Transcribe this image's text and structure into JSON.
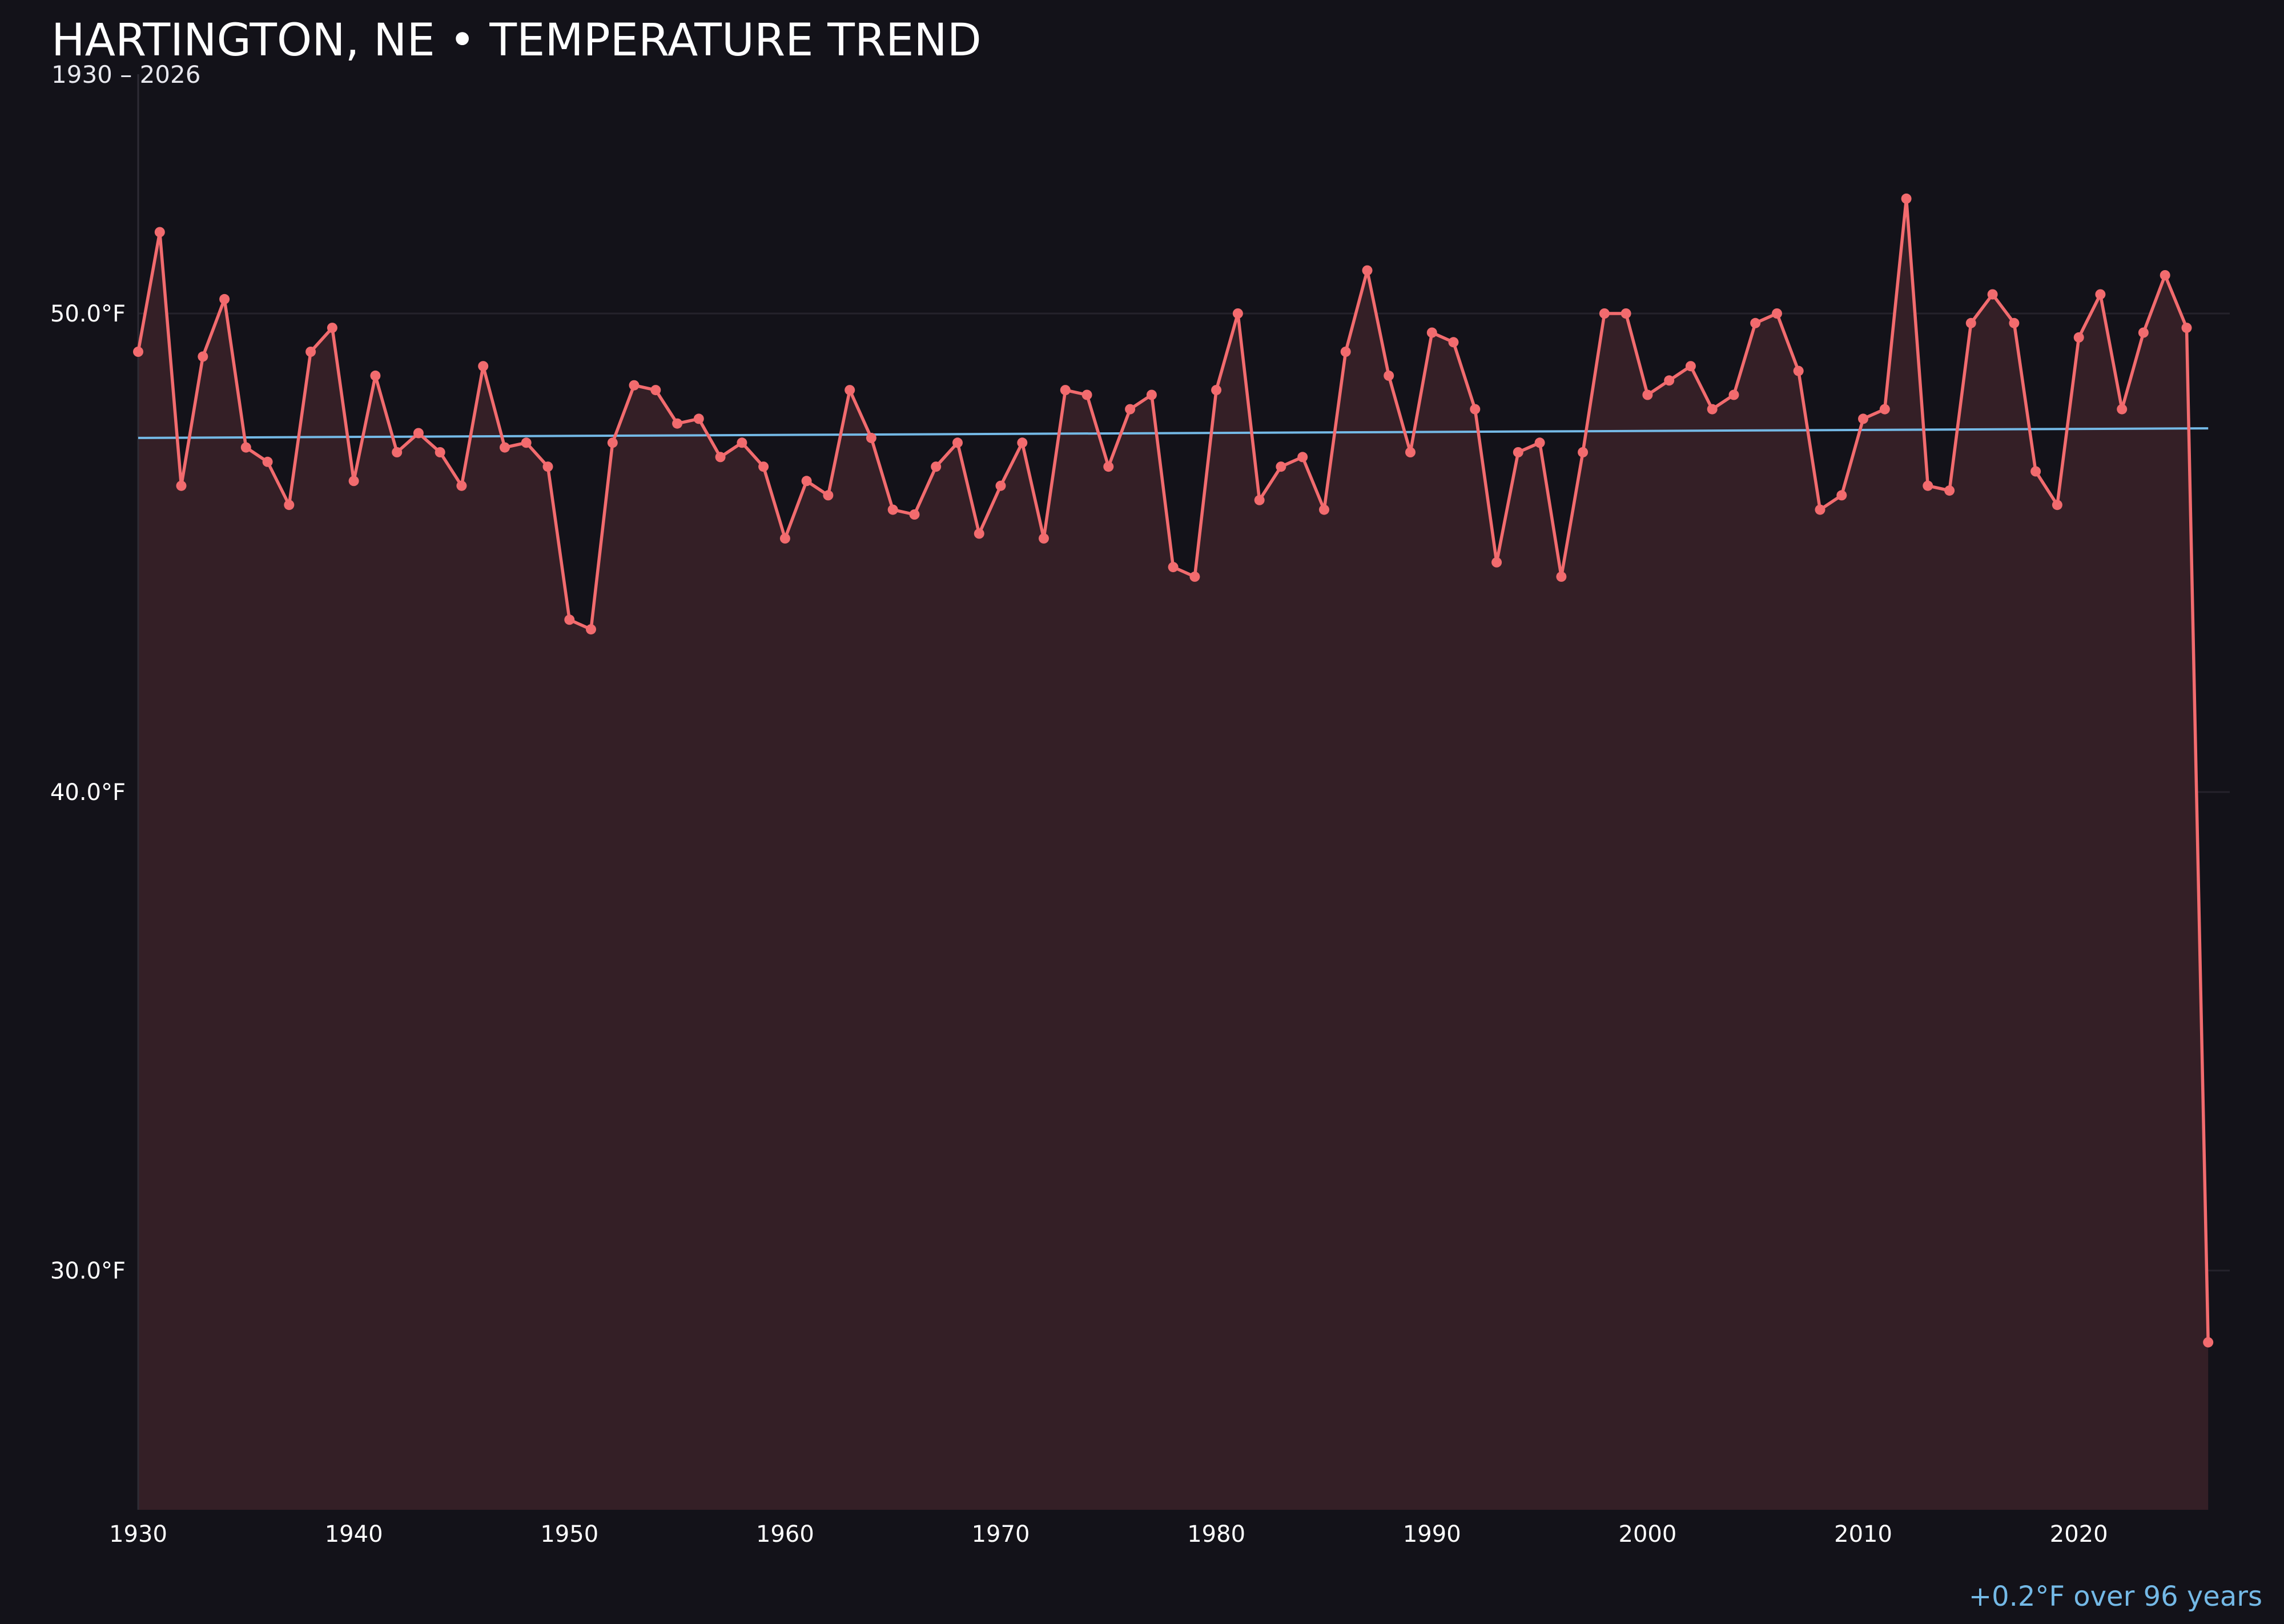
{
  "colors": {
    "background": "#131219",
    "series": "#f26b6e",
    "trend": "#74b9e6",
    "area_fill": "#341f26",
    "grid": "#25232c",
    "axis": "#2e2c35"
  },
  "chart_data": {
    "type": "line",
    "title": "HARTINGTON, NE • TEMPERATURE TREND",
    "subtitle": "1930 – 2026",
    "xlabel": "",
    "ylabel": "",
    "xlim": [
      1930,
      2027
    ],
    "ylim": [
      25,
      55
    ],
    "x_ticks": [
      1930,
      1940,
      1950,
      1960,
      1970,
      1980,
      1990,
      2000,
      2010,
      2020
    ],
    "y_ticks": [
      30,
      40,
      50
    ],
    "y_tick_labels": [
      "30.0°F",
      "40.0°F",
      "50.0°F"
    ],
    "grid": true,
    "area_under_series": true,
    "trend_line": {
      "x": [
        1930,
        2026
      ],
      "y": [
        47.4,
        47.6
      ]
    },
    "annotation": "+0.2°F over 96 years",
    "series": [
      {
        "x": [
          1930,
          1931,
          1932,
          1933,
          1934,
          1935,
          1936,
          1937,
          1938,
          1939,
          1940,
          1941,
          1942,
          1943,
          1944,
          1945,
          1946,
          1947,
          1948,
          1949,
          1950,
          1951,
          1952,
          1953,
          1954,
          1955,
          1956,
          1957,
          1958,
          1959,
          1960,
          1961,
          1962,
          1963,
          1964,
          1965,
          1966,
          1967,
          1968,
          1969,
          1970,
          1971,
          1972,
          1973,
          1974,
          1975,
          1976,
          1977,
          1978,
          1979,
          1980,
          1981,
          1982,
          1983,
          1984,
          1985,
          1986,
          1987,
          1988,
          1989,
          1990,
          1991,
          1992,
          1993,
          1994,
          1995,
          1996,
          1997,
          1998,
          1999,
          2000,
          2001,
          2002,
          2003,
          2004,
          2005,
          2006,
          2007,
          2008,
          2009,
          2010,
          2011,
          2012,
          2013,
          2014,
          2015,
          2016,
          2017,
          2018,
          2019,
          2020,
          2021,
          2022,
          2023,
          2024,
          2025,
          2026
        ],
        "values": [
          49.2,
          51.7,
          46.4,
          49.1,
          50.3,
          47.2,
          46.9,
          46.0,
          49.2,
          49.7,
          46.5,
          48.7,
          47.1,
          47.5,
          47.1,
          46.4,
          48.9,
          47.2,
          47.3,
          46.8,
          43.6,
          43.4,
          47.3,
          48.5,
          48.4,
          47.7,
          47.8,
          47.0,
          47.3,
          46.8,
          45.3,
          46.5,
          46.2,
          48.4,
          47.4,
          45.9,
          45.8,
          46.8,
          47.3,
          45.4,
          46.4,
          47.3,
          45.3,
          48.4,
          48.3,
          46.8,
          48.0,
          48.3,
          44.7,
          44.5,
          48.4,
          50.0,
          46.1,
          46.8,
          47.0,
          45.9,
          49.2,
          50.9,
          48.7,
          47.1,
          49.6,
          49.4,
          48.0,
          44.8,
          47.1,
          47.3,
          44.5,
          47.1,
          50.0,
          50.0,
          48.3,
          48.6,
          48.9,
          48.0,
          48.3,
          49.8,
          50.0,
          48.8,
          45.9,
          46.2,
          47.8,
          48.0,
          52.4,
          46.4,
          46.3,
          49.8,
          50.4,
          49.8,
          46.7,
          46.0,
          49.5,
          50.4,
          48.0,
          49.6,
          50.8,
          49.7,
          28.5
        ]
      }
    ]
  }
}
